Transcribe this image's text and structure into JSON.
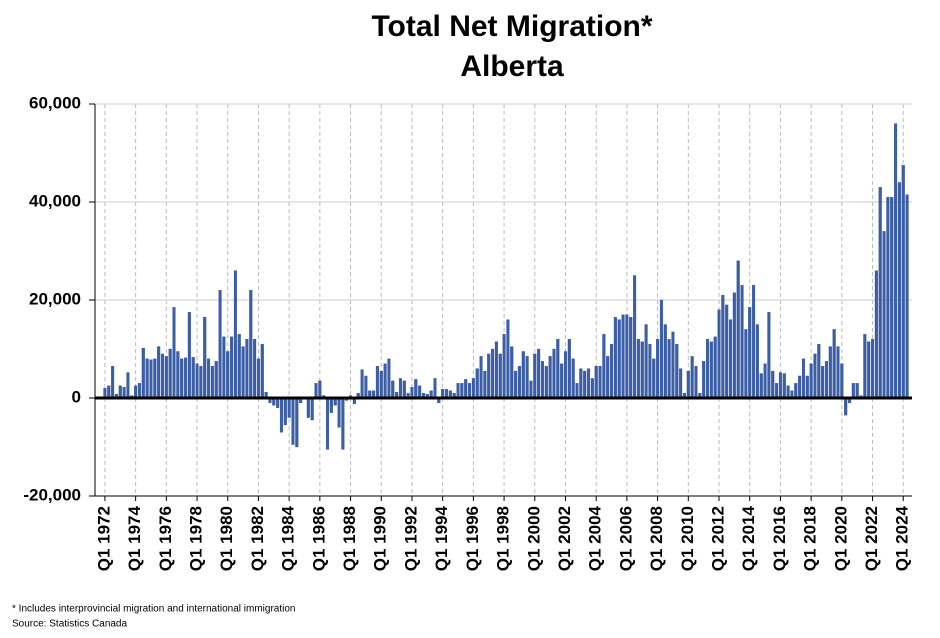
{
  "chart_data": {
    "type": "bar",
    "title": "Total Net Migration*",
    "subtitle": "Alberta",
    "footnote": "* Includes interprovincial migration and international immigration",
    "source": "Source: Statistics Canada",
    "color": "#3a5ea8",
    "grid": true,
    "ylim": [
      -20000,
      60000
    ],
    "yticks": [
      {
        "value": -20000,
        "label": "-20,000"
      },
      0,
      {
        "value": 20000,
        "label": "20,000"
      },
      {
        "value": 40000,
        "label": "40,000"
      },
      {
        "value": 60000,
        "label": "60,000"
      }
    ],
    "categories": [
      "Q1 1972",
      null,
      null,
      null,
      null,
      null,
      null,
      null,
      "Q1 1974",
      null,
      null,
      null,
      null,
      null,
      null,
      null,
      "Q1 1976",
      null,
      null,
      null,
      null,
      null,
      null,
      null,
      "Q1 1978",
      null,
      null,
      null,
      null,
      null,
      null,
      null,
      "Q1 1980",
      null,
      null,
      null,
      null,
      null,
      null,
      null,
      "Q1 1982",
      null,
      null,
      null,
      null,
      null,
      null,
      null,
      "Q1 1984",
      null,
      null,
      null,
      null,
      null,
      null,
      null,
      "Q1 1986",
      null,
      null,
      null,
      null,
      null,
      null,
      null,
      "Q1 1988",
      null,
      null,
      null,
      null,
      null,
      null,
      null,
      "Q1 1990",
      null,
      null,
      null,
      null,
      null,
      null,
      null,
      "Q1 1992",
      null,
      null,
      null,
      null,
      null,
      null,
      null,
      "Q1 1994",
      null,
      null,
      null,
      null,
      null,
      null,
      null,
      "Q1 1996",
      null,
      null,
      null,
      null,
      null,
      null,
      null,
      "Q1 1998",
      null,
      null,
      null,
      null,
      null,
      null,
      null,
      "Q1 2000",
      null,
      null,
      null,
      null,
      null,
      null,
      null,
      "Q1 2002",
      null,
      null,
      null,
      null,
      null,
      null,
      null,
      "Q1 2004",
      null,
      null,
      null,
      null,
      null,
      null,
      null,
      "Q1 2006",
      null,
      null,
      null,
      null,
      null,
      null,
      null,
      "Q1 2008",
      null,
      null,
      null,
      null,
      null,
      null,
      null,
      "Q1 2010",
      null,
      null,
      null,
      null,
      null,
      null,
      null,
      "Q1 2012",
      null,
      null,
      null,
      null,
      null,
      null,
      null,
      "Q1 2014",
      null,
      null,
      null,
      null,
      null,
      null,
      null,
      "Q1 2016",
      null,
      null,
      null,
      null,
      null,
      null,
      null,
      "Q1 2018",
      null,
      null,
      null,
      null,
      null,
      null,
      null,
      "Q1 2020",
      null,
      null,
      null,
      null,
      null,
      null,
      null,
      "Q1 2022",
      null,
      null,
      null,
      null,
      null,
      null,
      null,
      "Q1 2024",
      null
    ],
    "values": [
      2000,
      2500,
      6500,
      800,
      2500,
      2200,
      5200,
      500,
      2500,
      3000,
      10200,
      8000,
      7800,
      8000,
      10500,
      9000,
      8500,
      10000,
      18500,
      9500,
      8000,
      8200,
      17500,
      8300,
      7000,
      6500,
      16500,
      8000,
      6500,
      7500,
      22000,
      12500,
      9500,
      12500,
      26000,
      13000,
      10500,
      12000,
      22000,
      12000,
      8000,
      11000,
      1200,
      -1000,
      -1500,
      -2000,
      -7000,
      -5500,
      -4000,
      -9500,
      -10000,
      -1000,
      200,
      -4000,
      -4500,
      3000,
      3500,
      500,
      -10500,
      -3000,
      -1500,
      -6000,
      -10500,
      -500,
      500,
      -1200,
      1000,
      5800,
      4500,
      1500,
      1500,
      6500,
      5500,
      7000,
      8000,
      3500,
      1200,
      4000,
      3500,
      1000,
      2200,
      3800,
      2500,
      1000,
      800,
      1500,
      4000,
      -1000,
      1800,
      1800,
      1500,
      1000,
      3000,
      3000,
      3800,
      3000,
      4000,
      6000,
      8500,
      5500,
      9000,
      10000,
      11500,
      9000,
      13000,
      16000,
      10500,
      5500,
      6500,
      9500,
      8500,
      3500,
      9000,
      10000,
      7500,
      6500,
      8500,
      10000,
      12000,
      7000,
      9500,
      12000,
      8000,
      3000,
      6000,
      5500,
      6000,
      4000,
      6500,
      6500,
      13000,
      8500,
      11000,
      16500,
      16000,
      17000,
      17000,
      16500,
      25000,
      12000,
      11500,
      15000,
      11000,
      8000,
      12000,
      20000,
      15000,
      12000,
      13500,
      11000,
      6000,
      1000,
      5500,
      8500,
      6500,
      1000,
      7500,
      12000,
      11500,
      12500,
      18000,
      21000,
      19000,
      16000,
      21500,
      28000,
      23000,
      14000,
      18500,
      23000,
      15000,
      5000,
      7000,
      17500,
      5500,
      3000,
      5200,
      5000,
      2500,
      1500,
      3000,
      4500,
      8000,
      4500,
      7000,
      9000,
      11000,
      6500,
      7500,
      10500,
      14000,
      10500,
      7000,
      -3500,
      -1000,
      3000,
      3000,
      500,
      13000,
      11500,
      12000,
      26000,
      43000,
      34000,
      41000,
      41000,
      56000,
      44000,
      47500,
      41500
    ]
  }
}
